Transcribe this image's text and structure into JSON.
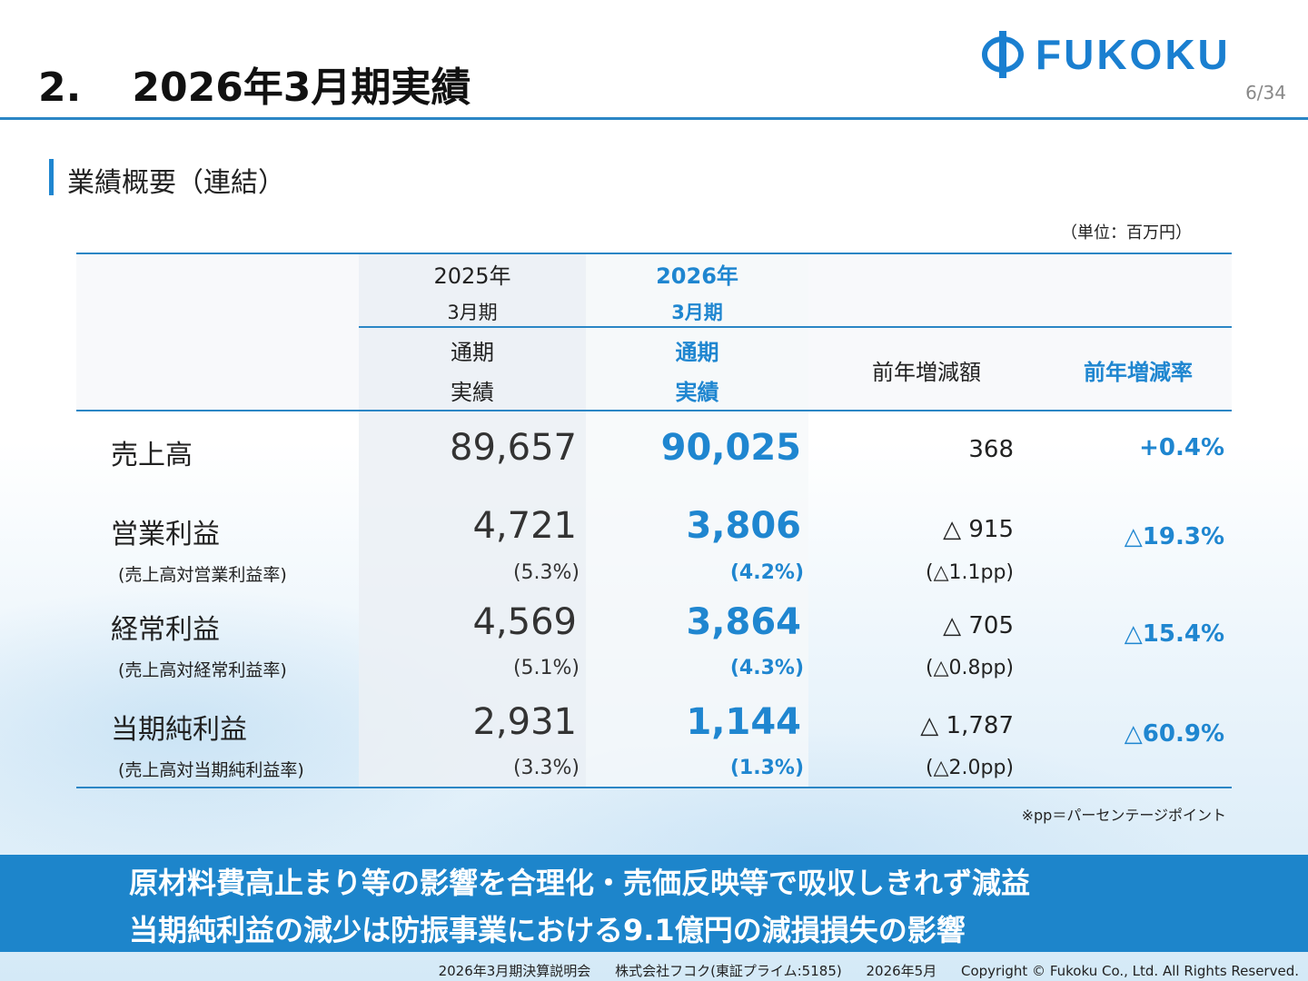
{
  "header": {
    "title_number": "2.",
    "title": "2026年3月期実績",
    "logo_text": "FUKOKU",
    "page": "6/34"
  },
  "section": {
    "title": "業績概要（連結）",
    "unit": "（単位：百万円）"
  },
  "table": {
    "columns": {
      "prev": {
        "year": "2025年",
        "term": "3月期",
        "type1": "通期",
        "type2": "実績"
      },
      "curr": {
        "year": "2026年",
        "term": "3月期",
        "type1": "通期",
        "type2": "実績"
      },
      "diff": "前年増減額",
      "rate": "前年増減率"
    },
    "rows": [
      {
        "label": "売上高",
        "sublabel": "",
        "prev": "89,657",
        "prev_pct": "",
        "curr": "90,025",
        "curr_pct": "",
        "diff": "368",
        "diff_pp": "",
        "rate": "+0.4%"
      },
      {
        "label": "営業利益",
        "sublabel": "(売上高対営業利益率)",
        "prev": "4,721",
        "prev_pct": "(5.3%)",
        "curr": "3,806",
        "curr_pct": "(4.2%)",
        "diff": "△ 915",
        "diff_pp": "(△1.1pp)",
        "rate": "△19.3%"
      },
      {
        "label": "経常利益",
        "sublabel": "(売上高対経常利益率)",
        "prev": "4,569",
        "prev_pct": "(5.1%)",
        "curr": "3,864",
        "curr_pct": "(4.3%)",
        "diff": "△ 705",
        "diff_pp": "(△0.8pp)",
        "rate": "△15.4%"
      },
      {
        "label": "当期純利益",
        "sublabel": "(売上高対当期純利益率)",
        "prev": "2,931",
        "prev_pct": "(3.3%)",
        "curr": "1,144",
        "curr_pct": "(1.3%)",
        "diff": "△ 1,787",
        "diff_pp": "(△2.0pp)",
        "rate": "△60.9%"
      }
    ],
    "note": "※pp＝パーセンテージポイント"
  },
  "banner": {
    "line1": "原材料費高止まり等の影響を合理化・売価反映等で吸収しきれず減益",
    "line2": "当期純利益の減少は防振事業における9.1億円の減損損失の影響"
  },
  "footer": {
    "event": "2026年3月期決算説明会",
    "company": "株式会社フコク(東証プライム:5185)",
    "date": "2026年5月",
    "copyright": "Copyright © Fukoku Co., Ltd.  All Rights Reserved."
  },
  "colors": {
    "accent": "#1f86d0",
    "banner": "#1d85cb"
  }
}
